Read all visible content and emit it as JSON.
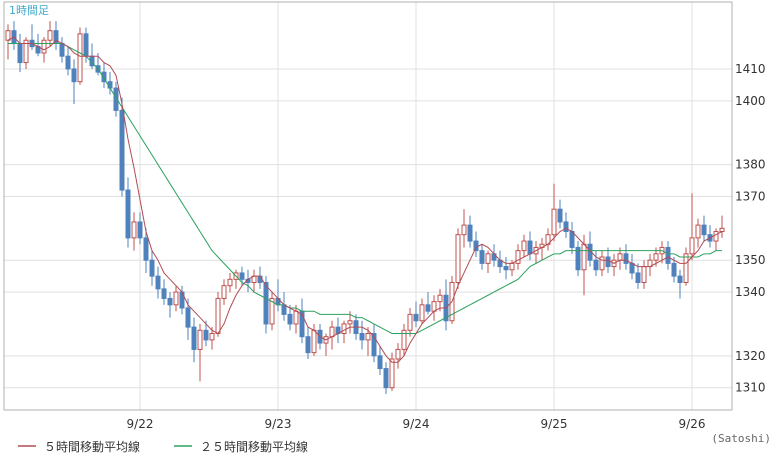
{
  "chart_data": {
    "type": "candlestick",
    "timeframe_label": "1時間足",
    "unit_label": "(Satoshi)",
    "x_ticks": [
      "9/22",
      "9/23",
      "9/24",
      "9/25",
      "9/26"
    ],
    "y_ticks": [
      1310,
      1320,
      1340,
      1350,
      1370,
      1380,
      1400,
      1410
    ],
    "ylim": [
      1303,
      1431
    ],
    "grid": true,
    "legend_position": "bottom-left",
    "colors": {
      "up": "#c0504d",
      "down": "#4f81bd",
      "ma5": "#b24c55",
      "ma25": "#2ca25f",
      "grid": "#e0e0e0",
      "frame": "#b0b0b0",
      "timeframe": "#3fa9cc"
    },
    "legend": [
      {
        "label": "５時間移動平均線",
        "color": "#b24c55"
      },
      {
        "label": "２５時間移動平均線",
        "color": "#2ca25f"
      }
    ],
    "candles": [
      [
        1419,
        1424,
        1413,
        1422
      ],
      [
        1422,
        1425,
        1416,
        1418
      ],
      [
        1418,
        1421,
        1409,
        1412
      ],
      [
        1412,
        1420,
        1410,
        1419
      ],
      [
        1419,
        1424,
        1416,
        1417
      ],
      [
        1417,
        1421,
        1414,
        1415
      ],
      [
        1415,
        1420,
        1412,
        1419
      ],
      [
        1419,
        1425,
        1417,
        1422
      ],
      [
        1422,
        1425,
        1416,
        1418
      ],
      [
        1418,
        1420,
        1412,
        1414
      ],
      [
        1414,
        1417,
        1408,
        1410
      ],
      [
        1410,
        1413,
        1399,
        1406
      ],
      [
        1406,
        1423,
        1405,
        1421
      ],
      [
        1421,
        1423,
        1412,
        1414
      ],
      [
        1414,
        1418,
        1410,
        1411
      ],
      [
        1411,
        1415,
        1408,
        1409
      ],
      [
        1409,
        1412,
        1404,
        1406
      ],
      [
        1406,
        1409,
        1402,
        1404
      ],
      [
        1404,
        1406,
        1395,
        1397
      ],
      [
        1397,
        1401,
        1370,
        1372
      ],
      [
        1372,
        1376,
        1354,
        1357
      ],
      [
        1357,
        1365,
        1353,
        1362
      ],
      [
        1362,
        1365,
        1355,
        1357
      ],
      [
        1357,
        1360,
        1346,
        1350
      ],
      [
        1350,
        1353,
        1342,
        1345
      ],
      [
        1345,
        1348,
        1338,
        1341
      ],
      [
        1341,
        1344,
        1336,
        1338
      ],
      [
        1338,
        1340,
        1332,
        1336
      ],
      [
        1336,
        1342,
        1334,
        1340
      ],
      [
        1340,
        1342,
        1333,
        1335
      ],
      [
        1335,
        1338,
        1325,
        1329
      ],
      [
        1329,
        1332,
        1318,
        1322
      ],
      [
        1322,
        1330,
        1312,
        1328
      ],
      [
        1328,
        1331,
        1323,
        1325
      ],
      [
        1325,
        1329,
        1322,
        1327
      ],
      [
        1327,
        1340,
        1326,
        1338
      ],
      [
        1338,
        1344,
        1336,
        1342
      ],
      [
        1342,
        1346,
        1340,
        1344
      ],
      [
        1344,
        1347,
        1341,
        1346
      ],
      [
        1346,
        1348,
        1342,
        1344
      ],
      [
        1344,
        1347,
        1340,
        1343
      ],
      [
        1343,
        1347,
        1340,
        1345
      ],
      [
        1345,
        1348,
        1341,
        1343
      ],
      [
        1343,
        1345,
        1327,
        1330
      ],
      [
        1330,
        1340,
        1328,
        1338
      ],
      [
        1338,
        1344,
        1334,
        1336
      ],
      [
        1336,
        1340,
        1331,
        1333
      ],
      [
        1333,
        1336,
        1328,
        1330
      ],
      [
        1330,
        1336,
        1327,
        1334
      ],
      [
        1334,
        1338,
        1324,
        1326
      ],
      [
        1326,
        1329,
        1319,
        1321
      ],
      [
        1321,
        1330,
        1320,
        1328
      ],
      [
        1328,
        1330,
        1322,
        1324
      ],
      [
        1324,
        1327,
        1320,
        1326
      ],
      [
        1326,
        1331,
        1322,
        1329
      ],
      [
        1329,
        1332,
        1324,
        1327
      ],
      [
        1327,
        1331,
        1324,
        1330
      ],
      [
        1330,
        1334,
        1327,
        1331
      ],
      [
        1331,
        1333,
        1325,
        1327
      ],
      [
        1327,
        1331,
        1322,
        1325
      ],
      [
        1325,
        1329,
        1320,
        1327
      ],
      [
        1327,
        1330,
        1318,
        1320
      ],
      [
        1320,
        1323,
        1314,
        1316
      ],
      [
        1316,
        1318,
        1308,
        1310
      ],
      [
        1310,
        1321,
        1309,
        1319
      ],
      [
        1319,
        1324,
        1316,
        1322
      ],
      [
        1322,
        1330,
        1320,
        1328
      ],
      [
        1328,
        1335,
        1326,
        1333
      ],
      [
        1333,
        1337,
        1329,
        1331
      ],
      [
        1331,
        1338,
        1330,
        1336
      ],
      [
        1336,
        1340,
        1333,
        1334
      ],
      [
        1334,
        1339,
        1331,
        1337
      ],
      [
        1337,
        1341,
        1334,
        1339
      ],
      [
        1339,
        1344,
        1328,
        1331
      ],
      [
        1331,
        1345,
        1330,
        1343
      ],
      [
        1343,
        1360,
        1341,
        1358
      ],
      [
        1358,
        1366,
        1354,
        1361
      ],
      [
        1361,
        1364,
        1354,
        1356
      ],
      [
        1356,
        1359,
        1351,
        1353
      ],
      [
        1353,
        1355,
        1347,
        1349
      ],
      [
        1349,
        1353,
        1346,
        1352
      ],
      [
        1352,
        1355,
        1348,
        1350
      ],
      [
        1350,
        1353,
        1346,
        1348
      ],
      [
        1348,
        1351,
        1344,
        1347
      ],
      [
        1347,
        1350,
        1345,
        1349
      ],
      [
        1349,
        1355,
        1347,
        1353
      ],
      [
        1353,
        1358,
        1351,
        1356
      ],
      [
        1356,
        1359,
        1350,
        1352
      ],
      [
        1352,
        1356,
        1349,
        1354
      ],
      [
        1354,
        1357,
        1350,
        1355
      ],
      [
        1355,
        1360,
        1353,
        1358
      ],
      [
        1358,
        1374,
        1356,
        1366
      ],
      [
        1366,
        1369,
        1360,
        1362
      ],
      [
        1362,
        1365,
        1357,
        1359
      ],
      [
        1359,
        1362,
        1352,
        1354
      ],
      [
        1354,
        1356,
        1345,
        1347
      ],
      [
        1347,
        1358,
        1339,
        1355
      ],
      [
        1355,
        1359,
        1348,
        1350
      ],
      [
        1350,
        1353,
        1345,
        1347
      ],
      [
        1347,
        1353,
        1345,
        1351
      ],
      [
        1351,
        1354,
        1346,
        1348
      ],
      [
        1348,
        1352,
        1345,
        1350
      ],
      [
        1350,
        1354,
        1347,
        1352
      ],
      [
        1352,
        1355,
        1347,
        1349
      ],
      [
        1349,
        1352,
        1344,
        1346
      ],
      [
        1346,
        1349,
        1341,
        1343
      ],
      [
        1343,
        1350,
        1341,
        1348
      ],
      [
        1348,
        1352,
        1345,
        1350
      ],
      [
        1350,
        1354,
        1348,
        1352
      ],
      [
        1352,
        1356,
        1349,
        1354
      ],
      [
        1354,
        1356,
        1347,
        1349
      ],
      [
        1349,
        1351,
        1343,
        1345
      ],
      [
        1345,
        1347,
        1338,
        1343
      ],
      [
        1343,
        1354,
        1342,
        1352
      ],
      [
        1352,
        1371,
        1350,
        1357
      ],
      [
        1357,
        1363,
        1354,
        1361
      ],
      [
        1361,
        1364,
        1356,
        1358
      ],
      [
        1358,
        1361,
        1354,
        1356
      ],
      [
        1356,
        1360,
        1353,
        1359
      ],
      [
        1359,
        1364,
        1357,
        1360
      ]
    ],
    "series": [
      {
        "name": "５時間移動平均線",
        "values": [
          1419,
          1420,
          1418,
          1418,
          1418,
          1417,
          1416,
          1417,
          1419,
          1418,
          1417,
          1415,
          1414,
          1414,
          1414,
          1414,
          1412,
          1411,
          1408,
          1399,
          1388,
          1379,
          1369,
          1359,
          1353,
          1350,
          1346,
          1344,
          1342,
          1340,
          1336,
          1334,
          1332,
          1330,
          1328,
          1327,
          1330,
          1335,
          1339,
          1342,
          1344,
          1345,
          1345,
          1342,
          1340,
          1338,
          1336,
          1335,
          1334,
          1333,
          1329,
          1328,
          1326,
          1325,
          1326,
          1327,
          1328,
          1329,
          1329,
          1329,
          1328,
          1326,
          1323,
          1320,
          1318,
          1318,
          1320,
          1324,
          1327,
          1330,
          1332,
          1334,
          1335,
          1335,
          1337,
          1342,
          1346,
          1350,
          1354,
          1355,
          1354,
          1352,
          1350,
          1349,
          1349,
          1350,
          1351,
          1352,
          1353,
          1354,
          1355,
          1357,
          1359,
          1360,
          1359,
          1357,
          1355,
          1353,
          1351,
          1350,
          1350,
          1349,
          1350,
          1350,
          1349,
          1348,
          1348,
          1348,
          1349,
          1350,
          1351,
          1350,
          1349,
          1349,
          1351,
          1353,
          1356,
          1357,
          1358,
          1359
        ]
      },
      {
        "name": "２５時間移動平均線",
        "values": [
          1418,
          1418,
          1418,
          1418,
          1418,
          1418,
          1418,
          1418,
          1418,
          1418,
          1417,
          1416,
          1415,
          1414,
          1412,
          1410,
          1407,
          1404,
          1401,
          1398,
          1395,
          1392,
          1389,
          1386,
          1383,
          1380,
          1377,
          1374,
          1371,
          1368,
          1365,
          1362,
          1359,
          1356,
          1353,
          1351,
          1349,
          1347,
          1345,
          1343,
          1342,
          1340,
          1339,
          1338,
          1337,
          1336,
          1336,
          1335,
          1335,
          1334,
          1334,
          1334,
          1333,
          1333,
          1333,
          1333,
          1333,
          1333,
          1332,
          1332,
          1331,
          1330,
          1329,
          1328,
          1327,
          1327,
          1327,
          1327,
          1327,
          1328,
          1329,
          1330,
          1331,
          1332,
          1333,
          1334,
          1335,
          1336,
          1337,
          1338,
          1339,
          1340,
          1341,
          1342,
          1343,
          1344,
          1346,
          1348,
          1349,
          1350,
          1351,
          1352,
          1352,
          1353,
          1353,
          1353,
          1353,
          1353,
          1353,
          1353,
          1353,
          1353,
          1353,
          1353,
          1353,
          1353,
          1353,
          1353,
          1353,
          1353,
          1352,
          1352,
          1351,
          1351,
          1351,
          1351,
          1352,
          1352,
          1353,
          1353
        ]
      }
    ]
  }
}
